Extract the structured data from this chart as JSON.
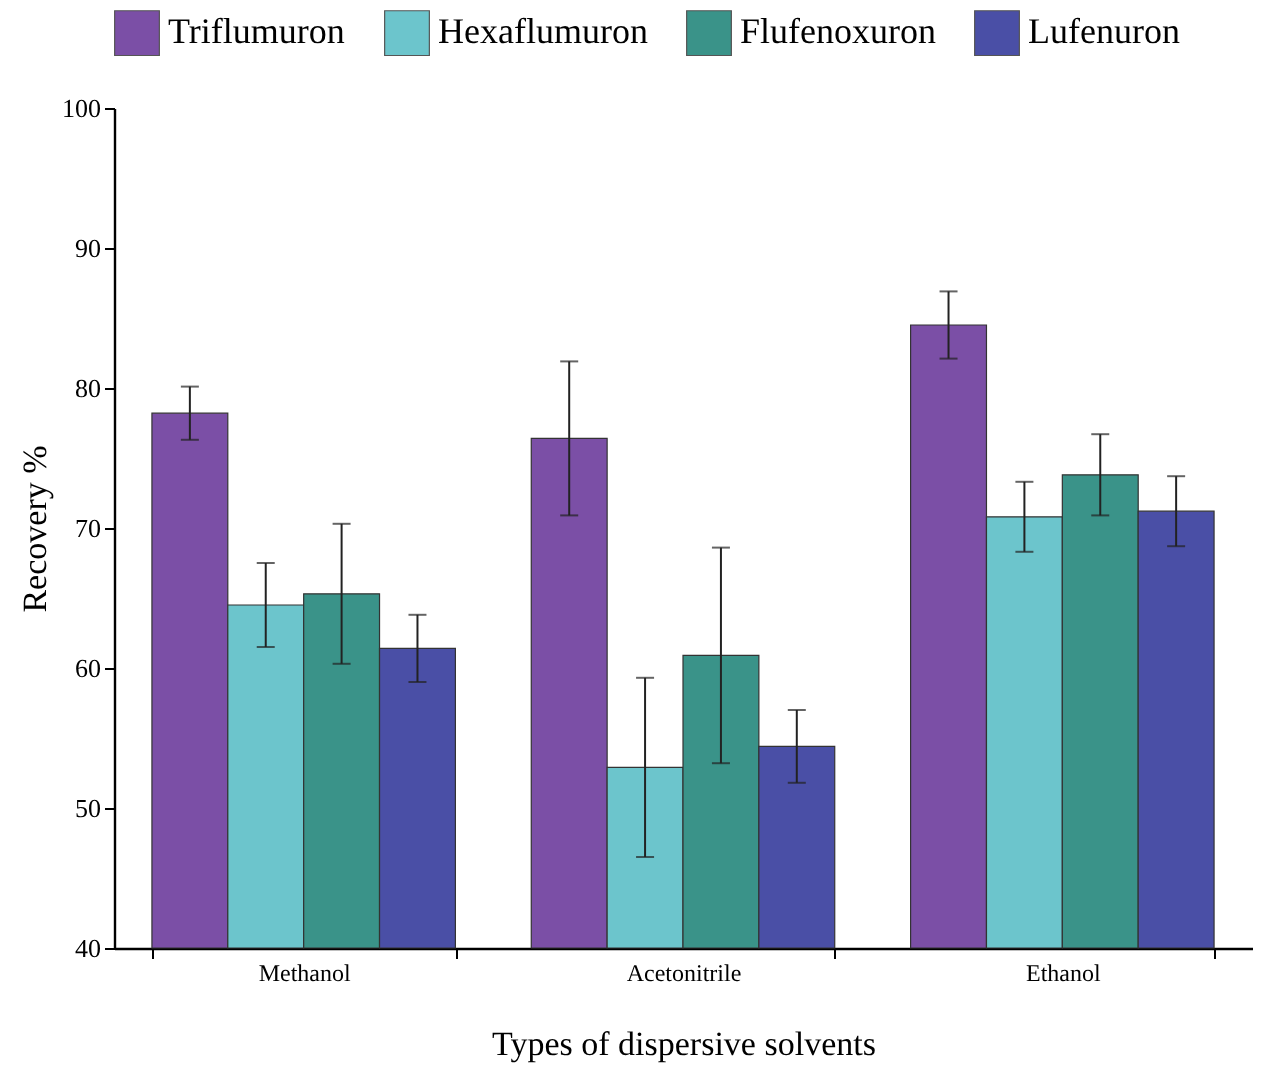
{
  "chart_data": {
    "type": "bar",
    "xlabel": "Types of dispersive solvents",
    "ylabel": "Recovery %",
    "categories": [
      "Methanol",
      "Acetonitrile",
      "Ethanol"
    ],
    "series": [
      {
        "name": "Triflumuron",
        "color": "#7b4fa6",
        "values": [
          78.2,
          76.4,
          84.5
        ],
        "errors": [
          1.9,
          5.5,
          2.4
        ]
      },
      {
        "name": "Hexaflumuron",
        "color": "#6cc5cc",
        "values": [
          64.5,
          52.9,
          70.8
        ],
        "errors": [
          3,
          6.4,
          2.5
        ]
      },
      {
        "name": "Flufenoxuron",
        "color": "#3a9389",
        "values": [
          65.3,
          60.9,
          73.8
        ],
        "errors": [
          5,
          7.7,
          2.9
        ]
      },
      {
        "name": "Lufenuron",
        "color": "#4a4fa6",
        "values": [
          61.4,
          54.4,
          71.2
        ],
        "errors": [
          2.4,
          2.6,
          2.5
        ]
      }
    ],
    "ylim": [
      40,
      100
    ],
    "yticks": [
      40,
      50,
      60,
      70,
      80,
      90,
      100
    ],
    "grid": false,
    "legend": "top"
  }
}
